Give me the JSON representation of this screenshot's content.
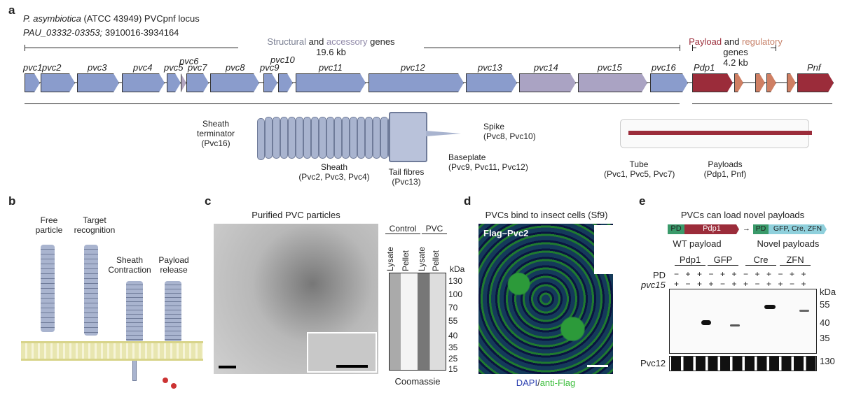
{
  "panel_a": {
    "label": "a",
    "title_italic": "P. asymbiotica",
    "title_rest": " (ATCC 43949) PVCpnf locus",
    "locus_italic": "PAU_03332-03353;",
    "locus_rest": " 3910016-3934164",
    "structural": {
      "w1": "Structural",
      "w2": " and ",
      "w3": "accessory",
      "w4": " genes",
      "size": "19.6 kb"
    },
    "payload": {
      "w1": "Payload",
      "w2": " and ",
      "w3": "regulatory",
      "w4": " genes",
      "size": "4.2 kb"
    },
    "genes": [
      {
        "name": "pvc1",
        "color": "#8a9ccc"
      },
      {
        "name": "pvc2",
        "color": "#8a9ccc"
      },
      {
        "name": "pvc3",
        "color": "#8a9ccc"
      },
      {
        "name": "pvc4",
        "color": "#8a9ccc"
      },
      {
        "name": "pvc5",
        "color": "#8a9ccc"
      },
      {
        "name": "pvc6",
        "color": "#b4a6c0"
      },
      {
        "name": "pvc7",
        "color": "#8a9ccc"
      },
      {
        "name": "pvc8",
        "color": "#8a9ccc"
      },
      {
        "name": "pvc9",
        "color": "#8a9ccc"
      },
      {
        "name": "pvc10",
        "color": "#8a9ccc"
      },
      {
        "name": "pvc11",
        "color": "#8a9ccc"
      },
      {
        "name": "pvc12",
        "color": "#8a9ccc"
      },
      {
        "name": "pvc13",
        "color": "#8a9ccc"
      },
      {
        "name": "pvc14",
        "color": "#aaa3c3"
      },
      {
        "name": "pvc15",
        "color": "#aaa3c3"
      },
      {
        "name": "pvc16",
        "color": "#8a9ccc"
      },
      {
        "name": "Pdp1",
        "color": "#9b2c3a"
      },
      {
        "name": "",
        "color": "#cf7f63"
      },
      {
        "name": "",
        "color": "#cf7f63"
      },
      {
        "name": "",
        "color": "#cf7f63"
      },
      {
        "name": "",
        "color": "#cf7f63"
      },
      {
        "name": "Pnf",
        "color": "#9b2c3a"
      }
    ],
    "annotations": {
      "terminator": "Sheath\nterminator\n(Pvc16)",
      "sheath": "Sheath\n(Pvc2, Pvc3, Pvc4)",
      "fibres": "Tail fibres\n(Pvc13)",
      "baseplate": "Baseplate\n(Pvc9, Pvc11, Pvc12)",
      "spike": "Spike\n(Pvc8, Pvc10)",
      "tube": "Tube\n(Pvc1, Pvc5, Pvc7)",
      "payloads": "Payloads\n(Pdp1, Pnf)"
    }
  },
  "panel_b": {
    "label": "b",
    "steps": [
      "Free\nparticle",
      "Target\nrecognition",
      "Sheath\nContraction",
      "Payload\nrelease"
    ]
  },
  "panel_c": {
    "label": "c",
    "title": "Purified PVC particles",
    "groups": [
      "Control",
      "PVC"
    ],
    "lanes": [
      "Lysate",
      "Pellet",
      "Lysate",
      "Pellet"
    ],
    "unit": "kDa",
    "markers": [
      "130",
      "100",
      "70",
      "55",
      "40",
      "35",
      "25",
      "15"
    ],
    "caption": "Coomassie"
  },
  "panel_d": {
    "label": "d",
    "title": "PVCs bind to insect cells (Sf9)",
    "overlay": "Flag–Pvc2",
    "caption_a": "DAPI",
    "caption_sep": "/",
    "caption_b": "anti-Flag",
    "colors": {
      "dapi": "#2b3fb0",
      "flag": "#3fbf3f"
    }
  },
  "panel_e": {
    "label": "e",
    "title": "PVCs can load novel payloads",
    "wt": {
      "pd": "PD",
      "payload": "Pdp1",
      "caption": "WT payload"
    },
    "novel": {
      "pd": "PD",
      "payload": "GFP, Cre, ZFN",
      "caption": "Novel payloads"
    },
    "groups": [
      "Pdp1",
      "GFP",
      "Cre",
      "ZFN"
    ],
    "row_pd_label": "PD",
    "row_pvc15_label": "pvc15",
    "pd": [
      "−",
      "+",
      "+",
      "−",
      "+",
      "+",
      "−",
      "+",
      "+",
      "−",
      "+",
      "+"
    ],
    "pvc15": [
      "+",
      "−",
      "+",
      "+",
      "−",
      "+",
      "+",
      "−",
      "+",
      "+",
      "−",
      "+"
    ],
    "unit": "kDa",
    "markers": [
      "55",
      "40",
      "35"
    ],
    "loading_label": "Pvc12",
    "loading_marker": "130"
  }
}
